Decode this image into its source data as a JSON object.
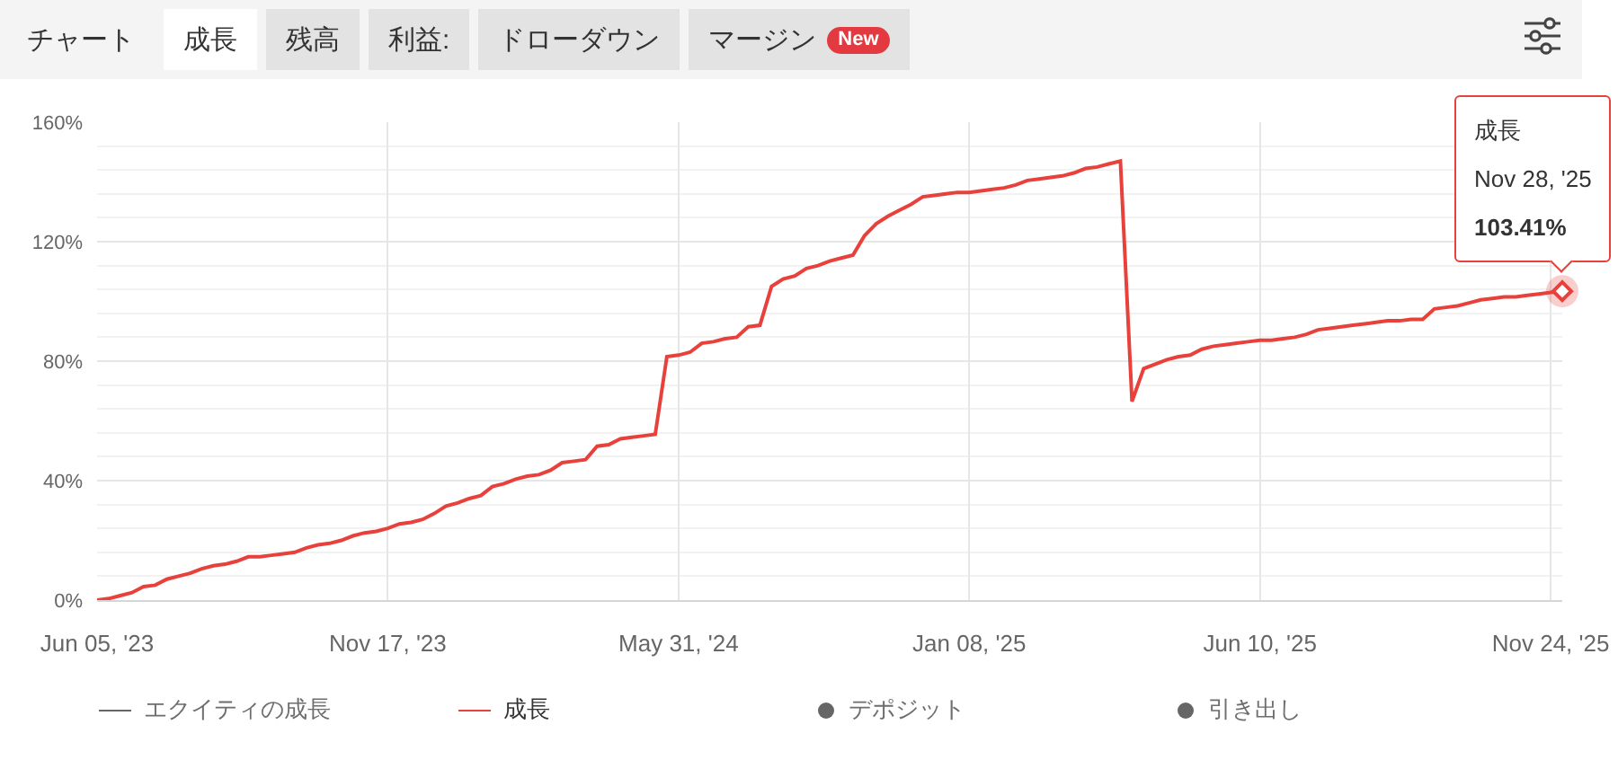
{
  "chart_data": {
    "type": "line",
    "annotations": [
      "チャート",
      "成長",
      "残高",
      "利益:",
      "ドローダウン",
      "マージン",
      "New",
      "成長\nNov 28, '25\n103.41%"
    ],
    "categories": [
      "Jun 05, '23",
      null,
      null,
      null,
      null,
      null,
      null,
      null,
      null,
      null,
      null,
      null,
      null,
      null,
      null,
      null,
      null,
      null,
      null,
      null,
      null,
      null,
      null,
      null,
      null,
      "Nov 17, '23",
      null,
      null,
      null,
      null,
      null,
      null,
      null,
      null,
      null,
      null,
      null,
      null,
      null,
      null,
      null,
      null,
      null,
      null,
      null,
      null,
      null,
      null,
      null,
      null,
      "May 31, '24",
      null,
      null,
      null,
      null,
      null,
      null,
      null,
      null,
      null,
      null,
      null,
      null,
      null,
      null,
      null,
      null,
      null,
      null,
      null,
      null,
      null,
      null,
      null,
      null,
      "Jan 08, '25",
      null,
      null,
      null,
      null,
      null,
      null,
      null,
      null,
      null,
      null,
      null,
      null,
      null,
      null,
      null,
      null,
      null,
      null,
      null,
      null,
      null,
      null,
      null,
      null,
      "Jun 10, '25",
      null,
      null,
      null,
      null,
      null,
      null,
      null,
      null,
      null,
      null,
      null,
      null,
      null,
      null,
      null,
      null,
      null,
      null,
      null,
      null,
      null,
      null,
      null,
      null,
      "Nov 24, '25",
      null
    ],
    "series": [
      {
        "name": "エクイティの成長",
        "color": "#666666",
        "values": [
          null,
          null,
          null,
          null,
          null,
          null,
          null,
          null,
          null,
          null,
          null,
          null,
          null,
          null,
          null,
          null,
          null,
          null,
          null,
          null,
          null,
          null,
          null,
          null,
          null,
          null,
          null,
          null,
          null,
          null,
          null,
          null,
          null,
          null,
          null,
          null,
          null,
          null,
          null,
          null,
          null,
          null,
          null,
          null,
          null,
          null,
          null,
          null,
          null,
          null,
          null,
          null,
          null,
          null,
          null,
          null,
          null,
          null,
          null,
          null,
          null,
          null,
          null,
          null,
          null,
          null,
          null,
          null,
          null,
          null,
          null,
          null,
          null,
          null,
          null,
          null,
          null,
          null,
          null,
          null,
          null,
          null,
          null,
          null,
          null,
          null,
          null,
          null,
          null,
          null,
          null,
          null,
          null,
          null,
          null,
          null,
          null,
          null,
          null,
          null,
          null,
          null,
          null,
          null,
          null,
          null,
          null,
          null,
          null,
          null,
          null,
          null,
          null,
          null,
          null,
          null,
          null,
          null,
          null,
          null,
          null,
          null,
          null,
          null,
          null,
          null,
          null
        ]
      },
      {
        "name": "成長",
        "color": "#e8413c",
        "values": [
          0,
          0.5,
          1.5,
          2.5,
          4.5,
          5,
          7,
          8,
          9,
          10.5,
          11.5,
          12,
          13,
          14.5,
          14.5,
          15,
          15.5,
          16,
          17.5,
          18.5,
          19,
          20,
          21.5,
          22.5,
          23,
          24,
          25.5,
          26,
          27,
          29,
          31.5,
          32.5,
          34,
          35,
          38,
          39,
          40.5,
          41.5,
          42,
          43.5,
          46,
          46.5,
          47,
          51.5,
          52,
          54,
          54.5,
          55,
          55.5,
          81.5,
          82,
          83,
          86,
          86.5,
          87.5,
          88,
          91.5,
          92,
          105,
          107.5,
          108.5,
          111,
          112,
          113.5,
          114.5,
          115.5,
          122,
          126,
          128.5,
          130.5,
          132.5,
          135,
          135.5,
          136,
          136.5,
          136.5,
          137,
          137.5,
          138,
          139,
          140.5,
          141,
          141.5,
          142,
          143,
          144.5,
          145,
          146,
          147,
          66.5,
          77.5,
          79,
          80.5,
          81.5,
          82,
          84,
          85,
          85.5,
          86,
          86.5,
          87,
          87,
          87.5,
          88,
          89,
          90.5,
          91,
          91.5,
          92,
          92.5,
          93,
          93.5,
          93.5,
          94,
          94,
          97.5,
          98,
          98.5,
          99.5,
          100.5,
          101,
          101.5,
          101.5,
          102,
          102.5,
          103,
          103.41
        ]
      },
      {
        "name": "デポジット",
        "type": "scatter",
        "color": "#666666",
        "values": [
          null,
          null,
          null,
          null,
          null,
          null,
          null,
          null,
          null,
          null,
          null,
          null,
          null,
          null,
          null,
          null,
          null,
          null,
          null,
          null,
          null,
          null,
          null,
          null,
          null,
          null,
          null,
          null,
          null,
          null,
          null,
          null,
          null,
          null,
          null,
          null,
          null,
          null,
          null,
          null,
          null,
          null,
          null,
          null,
          null,
          null,
          null,
          null,
          null,
          null,
          null,
          null,
          null,
          null,
          null,
          null,
          null,
          null,
          null,
          null,
          null,
          null,
          null,
          null,
          null,
          null,
          null,
          null,
          null,
          null,
          null,
          null,
          null,
          null,
          null,
          null,
          null,
          null,
          null,
          null,
          null,
          null,
          null,
          null,
          null,
          null,
          null,
          null,
          null,
          null,
          null,
          null,
          null,
          null,
          null,
          null,
          null,
          null,
          null,
          null,
          null,
          null,
          null,
          null,
          null,
          null,
          null,
          null,
          null,
          null,
          null,
          null,
          null,
          null,
          null,
          null,
          null,
          null,
          null,
          null,
          null,
          null,
          null,
          null,
          null,
          null,
          null
        ]
      },
      {
        "name": "引き出し",
        "type": "scatter",
        "color": "#666666",
        "values": [
          null,
          null,
          null,
          null,
          null,
          null,
          null,
          null,
          null,
          null,
          null,
          null,
          null,
          null,
          null,
          null,
          null,
          null,
          null,
          null,
          null,
          null,
          null,
          null,
          null,
          null,
          null,
          null,
          null,
          null,
          null,
          null,
          null,
          null,
          null,
          null,
          null,
          null,
          null,
          null,
          null,
          null,
          null,
          null,
          null,
          null,
          null,
          null,
          null,
          null,
          null,
          null,
          null,
          null,
          null,
          null,
          null,
          null,
          null,
          null,
          null,
          null,
          null,
          null,
          null,
          null,
          null,
          null,
          null,
          null,
          null,
          null,
          null,
          null,
          null,
          null,
          null,
          null,
          null,
          null,
          null,
          null,
          null,
          null,
          null,
          null,
          null,
          null,
          null,
          null,
          null,
          null,
          null,
          null,
          null,
          null,
          null,
          null,
          null,
          null,
          null,
          null,
          null,
          null,
          null,
          null,
          null,
          null,
          null,
          null,
          null,
          null,
          null,
          null,
          null,
          null,
          null,
          null,
          null,
          null,
          null,
          null,
          null,
          null,
          null,
          null,
          null
        ]
      }
    ],
    "ylim": [
      0,
      160
    ],
    "yticks": [
      {
        "value": 0,
        "label": "0%"
      },
      {
        "value": 8,
        "label": null
      },
      {
        "value": 16,
        "label": null
      },
      {
        "value": 24,
        "label": null
      },
      {
        "value": 32,
        "label": null
      },
      {
        "value": 40,
        "label": "40%"
      },
      {
        "value": 48,
        "label": null
      },
      {
        "value": 56,
        "label": null
      },
      {
        "value": 64,
        "label": null
      },
      {
        "value": 72,
        "label": null
      },
      {
        "value": 80,
        "label": "80%"
      },
      {
        "value": 88,
        "label": null
      },
      {
        "value": 96,
        "label": null
      },
      {
        "value": 104,
        "label": null
      },
      {
        "value": 112,
        "label": null
      },
      {
        "value": 120,
        "label": "120%"
      },
      {
        "value": 128,
        "label": null
      },
      {
        "value": 136,
        "label": null
      },
      {
        "value": 144,
        "label": null
      },
      {
        "value": 152,
        "label": null
      },
      {
        "value": 160,
        "label": "160%"
      }
    ],
    "grid": true,
    "legend": "bottom"
  }
}
